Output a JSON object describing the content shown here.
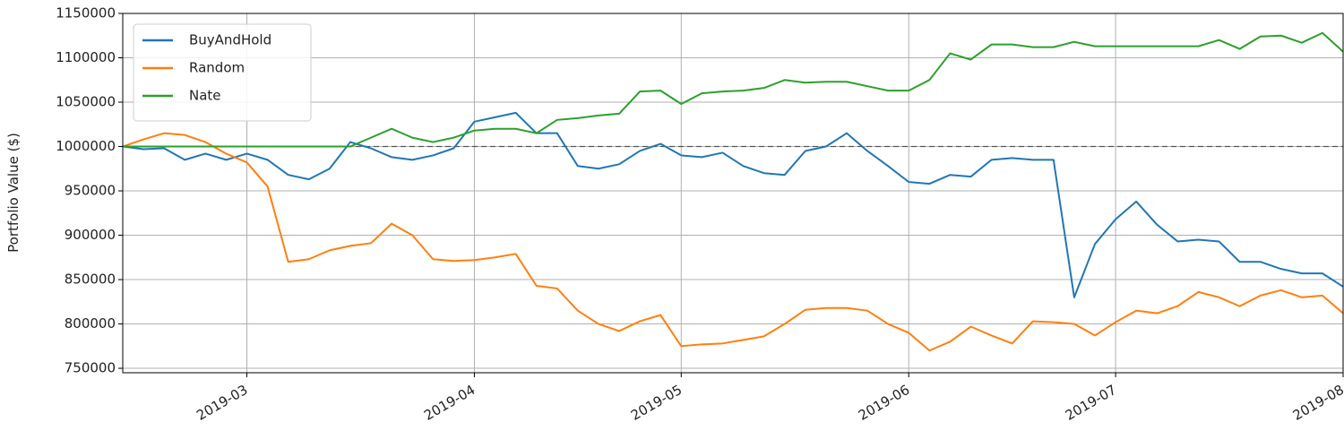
{
  "chart_data": {
    "type": "line",
    "y_label": "Portfolio Value ($)",
    "categories": [
      null,
      null,
      null,
      null,
      null,
      null,
      "2019-03",
      null,
      null,
      null,
      null,
      null,
      null,
      null,
      null,
      null,
      null,
      "2019-04",
      null,
      null,
      null,
      null,
      null,
      null,
      null,
      null,
      null,
      "2019-05",
      null,
      null,
      null,
      null,
      null,
      null,
      null,
      null,
      null,
      null,
      "2019-06",
      null,
      null,
      null,
      null,
      null,
      null,
      null,
      null,
      null,
      "2019-07",
      null,
      null,
      null,
      null,
      null,
      null,
      null,
      null,
      null,
      null,
      "2019-08"
    ],
    "series": [
      {
        "name": "BuyAndHold",
        "color": "#1f77b4",
        "values": [
          1000000,
          997000,
          998000,
          985000,
          992000,
          985000,
          992000,
          985000,
          968000,
          963000,
          975000,
          1005000,
          998000,
          988000,
          985000,
          990000,
          998000,
          1028000,
          1033000,
          1038000,
          1015000,
          1015000,
          978000,
          975000,
          980000,
          995000,
          1003000,
          990000,
          988000,
          993000,
          978000,
          970000,
          968000,
          995000,
          1000000,
          1015000,
          995000,
          978000,
          960000,
          958000,
          968000,
          966000,
          985000,
          987000,
          985000,
          985000,
          830000,
          890000,
          918000,
          938000,
          912000,
          893000,
          895000,
          893000,
          870000,
          870000,
          862000,
          857000,
          857000,
          842000
        ]
      },
      {
        "name": "Random",
        "color": "#ff7f0e",
        "values": [
          1000000,
          1008000,
          1015000,
          1013000,
          1005000,
          992000,
          982000,
          955000,
          870000,
          873000,
          883000,
          888000,
          891000,
          913000,
          900000,
          873000,
          871000,
          872000,
          875000,
          879000,
          843000,
          840000,
          815000,
          800000,
          792000,
          803000,
          810000,
          775000,
          777000,
          778000,
          782000,
          786000,
          800000,
          816000,
          818000,
          818000,
          815000,
          800000,
          790000,
          770000,
          780000,
          797000,
          787000,
          778000,
          803000,
          802000,
          800000,
          787000,
          802000,
          815000,
          812000,
          820000,
          836000,
          830000,
          820000,
          832000,
          838000,
          830000,
          832000,
          812000
        ]
      },
      {
        "name": "Nate",
        "color": "#2ca02c",
        "values": [
          1000000,
          1000000,
          1000000,
          1000000,
          1000000,
          1000000,
          1000000,
          1000000,
          1000000,
          1000000,
          1000000,
          1000000,
          1010000,
          1020000,
          1010000,
          1005000,
          1010000,
          1018000,
          1020000,
          1020000,
          1015000,
          1030000,
          1032000,
          1035000,
          1037000,
          1062000,
          1063000,
          1048000,
          1060000,
          1062000,
          1063000,
          1066000,
          1075000,
          1072000,
          1073000,
          1073000,
          1068000,
          1063000,
          1063000,
          1075000,
          1105000,
          1098000,
          1115000,
          1115000,
          1112000,
          1112000,
          1118000,
          1113000,
          1113000,
          1113000,
          1113000,
          1113000,
          1113000,
          1120000,
          1110000,
          1124000,
          1125000,
          1117000,
          1128000,
          1107000
        ]
      }
    ],
    "reference_line": 1000000,
    "ylim": [
      745000,
      1150000
    ],
    "yticks": [
      750000,
      800000,
      850000,
      900000,
      950000,
      1000000,
      1050000,
      1100000,
      1150000
    ],
    "grid": true,
    "legend": "upper-left"
  }
}
